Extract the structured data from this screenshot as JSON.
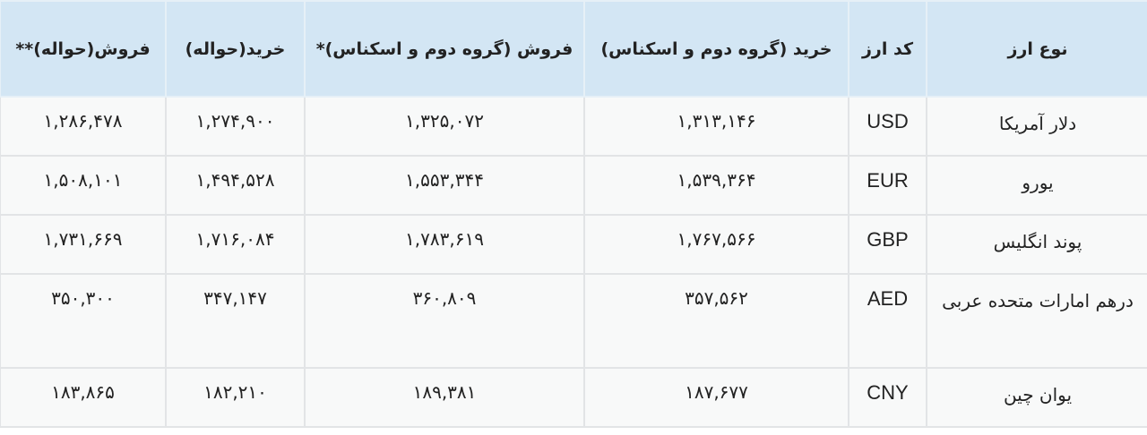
{
  "table": {
    "headers": [
      "نوع ارز",
      "کد ارز",
      "خرید (گروه دوم و اسکناس)",
      "فروش (گروه دوم و اسکناس)*",
      "خرید(حواله)",
      "فروش(حواله)**"
    ],
    "rows": [
      {
        "name": "دلار آمریکا",
        "code": "USD",
        "buy2": "۱,۳۱۳,۱۴۶",
        "sell2": "۱,۳۲۵,۰۷۲",
        "buy_remit": "۱,۲۷۴,۹۰۰",
        "sell_remit": "۱,۲۸۶,۴۷۸"
      },
      {
        "name": "یورو",
        "code": "EUR",
        "buy2": "۱,۵۳۹,۳۶۴",
        "sell2": "۱,۵۵۳,۳۴۴",
        "buy_remit": "۱,۴۹۴,۵۲۸",
        "sell_remit": "۱,۵۰۸,۱۰۱"
      },
      {
        "name": "پوند انگلیس",
        "code": "GBP",
        "buy2": "۱,۷۶۷,۵۶۶",
        "sell2": "۱,۷۸۳,۶۱۹",
        "buy_remit": "۱,۷۱۶,۰۸۴",
        "sell_remit": "۱,۷۳۱,۶۶۹"
      },
      {
        "name": "درهم امارات متحده عربی",
        "code": "AED",
        "buy2": "۳۵۷,۵۶۲",
        "sell2": "۳۶۰,۸۰۹",
        "buy_remit": "۳۴۷,۱۴۷",
        "sell_remit": "۳۵۰,۳۰۰"
      },
      {
        "name": "یوان چین",
        "code": "CNY",
        "buy2": "۱۸۷,۶۷۷",
        "sell2": "۱۸۹,۳۸۱",
        "buy_remit": "۱۸۲,۲۱۰",
        "sell_remit": "۱۸۳,۸۶۵"
      }
    ]
  },
  "colors": {
    "header_bg": "#d3e6f4",
    "cell_bg": "#f8f9f9",
    "border": "#e2e4e6"
  }
}
